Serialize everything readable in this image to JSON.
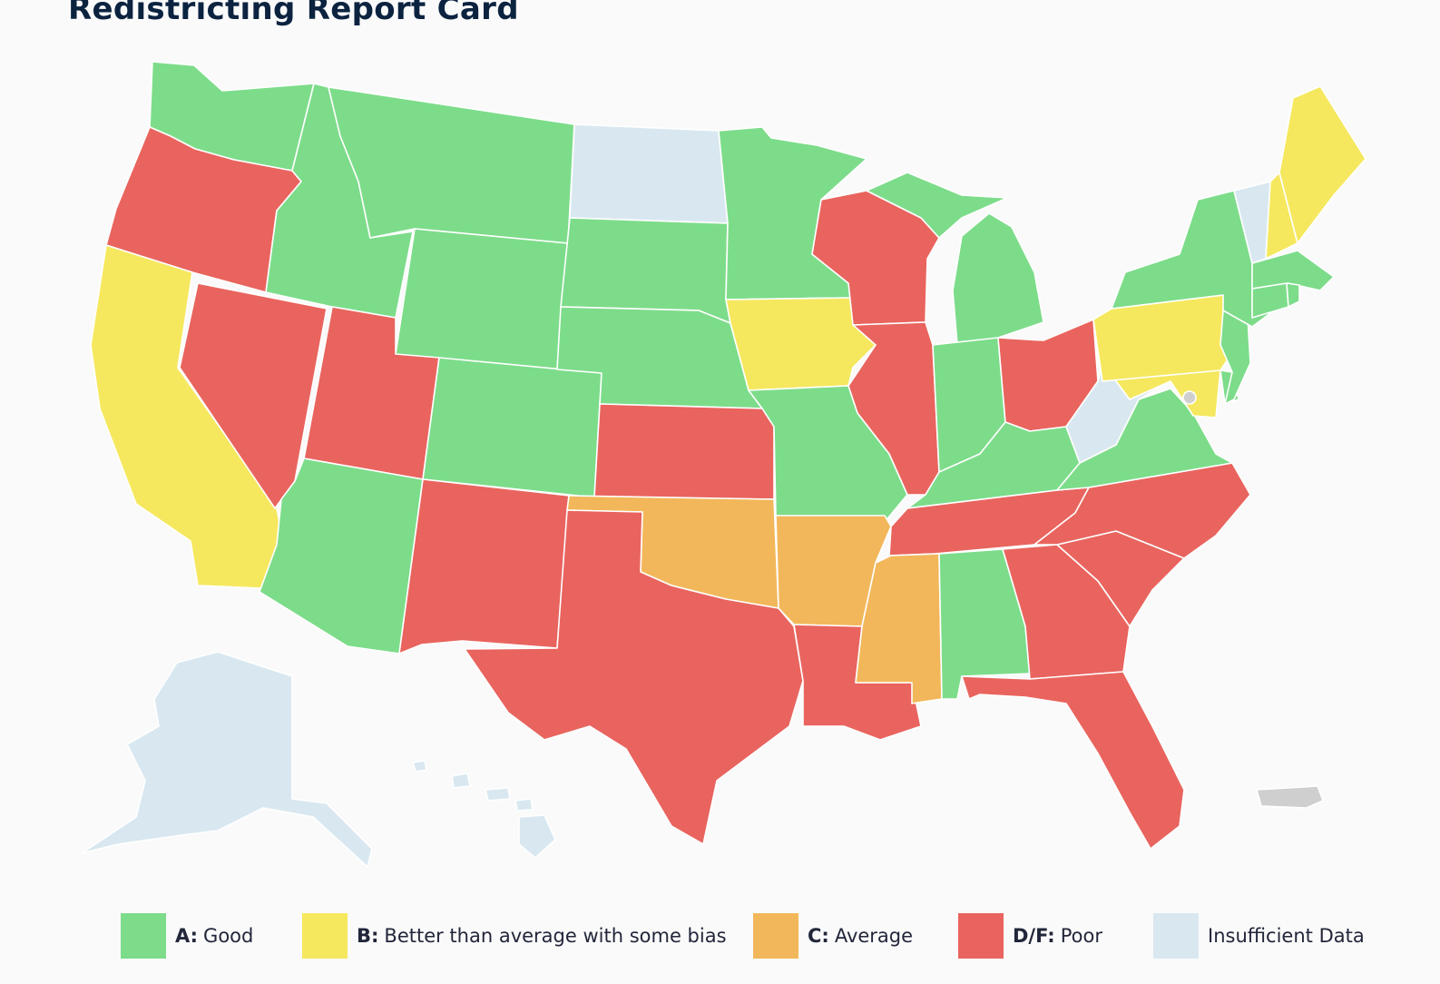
{
  "title": "Redistricting Report Card",
  "colors": {
    "A": "#7ddc8a",
    "B": "#f5e85f",
    "C": "#f2b75a",
    "DF": "#e9645e",
    "none": "#d9e8f0",
    "territory": "#cfcfcf"
  },
  "legend": [
    {
      "key": "A",
      "grade": "A:",
      "label": "Good"
    },
    {
      "key": "B",
      "grade": "B:",
      "label": "Better than average with some bias"
    },
    {
      "key": "C",
      "grade": "C:",
      "label": "Average"
    },
    {
      "key": "DF",
      "grade": "D/F:",
      "label": "Poor"
    },
    {
      "key": "none",
      "grade": "",
      "label": "Insufficient Data"
    }
  ],
  "states": {
    "WA": "A",
    "OR": "DF",
    "CA": "B",
    "ID": "A",
    "NV": "DF",
    "MT": "A",
    "WY": "A",
    "UT": "DF",
    "AZ": "A",
    "CO": "A",
    "NM": "DF",
    "ND": "none",
    "SD": "A",
    "NE": "A",
    "KS": "DF",
    "OK": "C",
    "TX": "DF",
    "MN": "A",
    "IA": "B",
    "MO": "A",
    "AR": "C",
    "LA": "DF",
    "WI": "DF",
    "IL": "DF",
    "MI": "A",
    "IN": "A",
    "OH": "DF",
    "KY": "A",
    "TN": "DF",
    "MS": "C",
    "AL": "A",
    "GA": "DF",
    "FL": "DF",
    "SC": "DF",
    "NC": "DF",
    "VA": "A",
    "WV": "none",
    "PA": "B",
    "MD": "B",
    "DE": "A",
    "NJ": "A",
    "NY": "A",
    "CT": "A",
    "RI": "A",
    "MA": "A",
    "VT": "none",
    "NH": "B",
    "ME": "B",
    "DC": "none",
    "AK": "none",
    "HI": "none",
    "PR": "territory"
  }
}
